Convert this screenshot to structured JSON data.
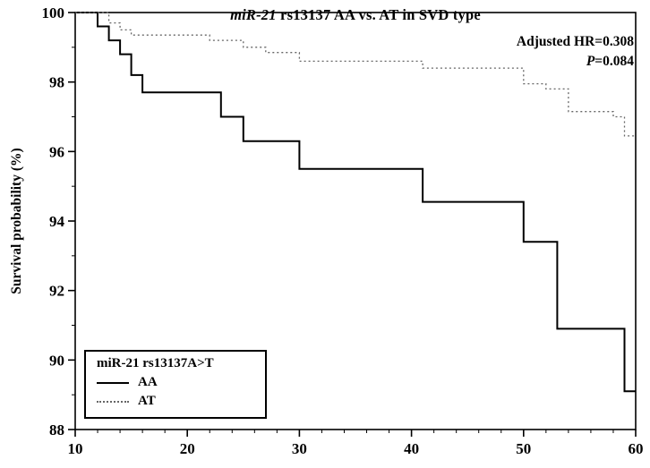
{
  "chart_data": {
    "type": "line",
    "subtype": "kaplan-meier-step",
    "title_italic": "miR-21",
    "title_rest": " rs13137 AA vs. AT in SVD type",
    "ylabel": "Survival probability (%)",
    "xlim": [
      10,
      60
    ],
    "ylim": [
      88,
      100
    ],
    "xticks": [
      10,
      20,
      30,
      40,
      50,
      60
    ],
    "yticks": [
      88,
      90,
      92,
      94,
      96,
      98,
      100
    ],
    "x_minor_step": 2,
    "y_minor_step": 1,
    "grid": "off",
    "annotations": {
      "line1": "Adjusted HR=0.308",
      "line2_italic": "P",
      "line2_rest": "=0.084"
    },
    "legend": {
      "title": "miR-21 rs13137A>T",
      "entries": [
        {
          "label": "AA",
          "style": "solid"
        },
        {
          "label": "AT",
          "style": "dotted"
        }
      ],
      "position": "lower-left"
    },
    "series": [
      {
        "name": "AA",
        "style": "solid",
        "color": "#000000",
        "width": 2,
        "steps": [
          [
            10,
            100
          ],
          [
            12,
            99.6
          ],
          [
            13,
            99.2
          ],
          [
            14,
            98.8
          ],
          [
            15,
            98.2
          ],
          [
            16,
            97.7
          ],
          [
            23,
            97.0
          ],
          [
            25,
            96.3
          ],
          [
            30,
            95.5
          ],
          [
            41,
            94.55
          ],
          [
            50,
            93.4
          ],
          [
            53,
            90.9
          ],
          [
            59,
            89.1
          ]
        ],
        "x_end": 60
      },
      {
        "name": "AT",
        "style": "dotted",
        "color": "#666666",
        "width": 1.3,
        "steps": [
          [
            10,
            100
          ],
          [
            13,
            99.7
          ],
          [
            14,
            99.5
          ],
          [
            15,
            99.35
          ],
          [
            22,
            99.2
          ],
          [
            25,
            99.0
          ],
          [
            27,
            98.85
          ],
          [
            30,
            98.6
          ],
          [
            41,
            98.4
          ],
          [
            50,
            97.95
          ],
          [
            52,
            97.8
          ],
          [
            54,
            97.15
          ],
          [
            58,
            97.0
          ],
          [
            59,
            96.45
          ]
        ],
        "x_end": 60
      }
    ]
  }
}
